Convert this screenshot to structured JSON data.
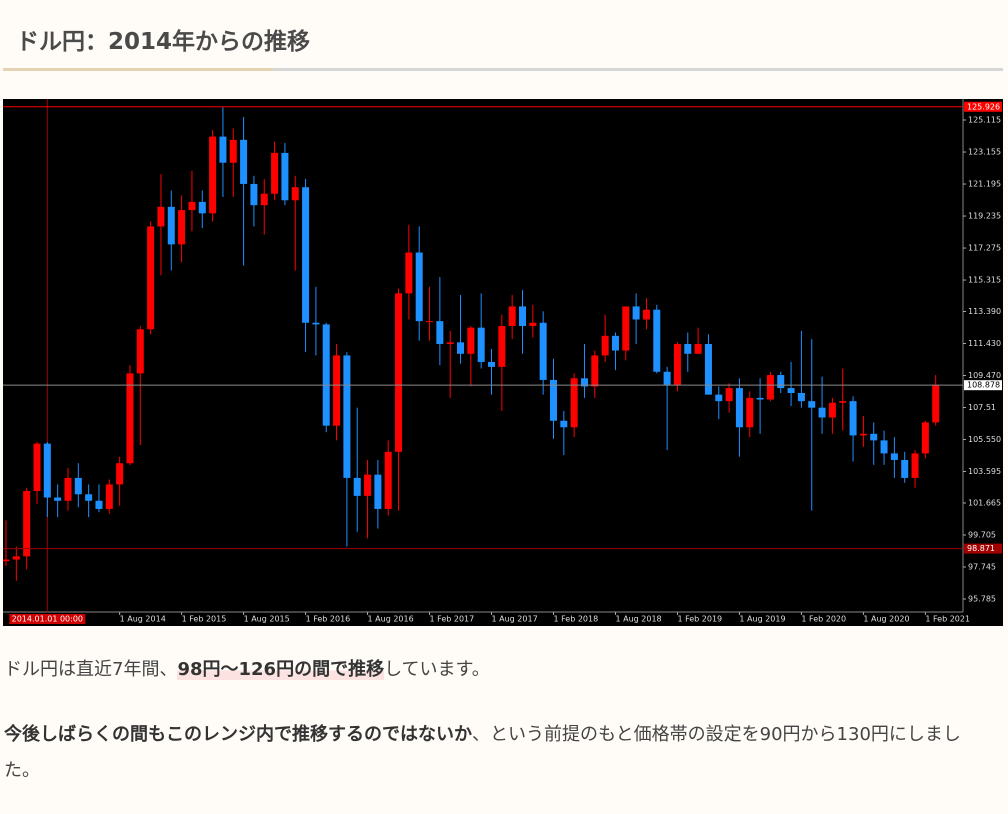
{
  "header": {
    "title": "ドル円：2014年からの推移"
  },
  "chart_data": {
    "type": "candlestick",
    "x": [
      "2013-09",
      "2013-10",
      "2013-11",
      "2013-12",
      "2014-01",
      "2014-02",
      "2014-03",
      "2014-04",
      "2014-05",
      "2014-06",
      "2014-07",
      "2014-08",
      "2014-09",
      "2014-10",
      "2014-11",
      "2014-12",
      "2015-01",
      "2015-02",
      "2015-03",
      "2015-04",
      "2015-05",
      "2015-06",
      "2015-07",
      "2015-08",
      "2015-09",
      "2015-10",
      "2015-11",
      "2015-12",
      "2016-01",
      "2016-02",
      "2016-03",
      "2016-04",
      "2016-05",
      "2016-06",
      "2016-07",
      "2016-08",
      "2016-09",
      "2016-10",
      "2016-11",
      "2016-12",
      "2017-01",
      "2017-02",
      "2017-03",
      "2017-04",
      "2017-05",
      "2017-06",
      "2017-07",
      "2017-08",
      "2017-09",
      "2017-10",
      "2017-11",
      "2017-12",
      "2018-01",
      "2018-02",
      "2018-03",
      "2018-04",
      "2018-05",
      "2018-06",
      "2018-07",
      "2018-08",
      "2018-09",
      "2018-10",
      "2018-11",
      "2018-12",
      "2019-01",
      "2019-02",
      "2019-03",
      "2019-04",
      "2019-05",
      "2019-06",
      "2019-07",
      "2019-08",
      "2019-09",
      "2019-10",
      "2019-11",
      "2019-12",
      "2020-01",
      "2020-02",
      "2020-03",
      "2020-04",
      "2020-05",
      "2020-06",
      "2020-07",
      "2020-08",
      "2020-09",
      "2020-10",
      "2020-11",
      "2020-12",
      "2021-01",
      "2021-02",
      "2021-03"
    ],
    "open": [
      98.1,
      98.2,
      98.4,
      102.4,
      105.3,
      102.0,
      101.8,
      103.2,
      102.2,
      101.8,
      101.3,
      102.8,
      104.1,
      109.6,
      112.3,
      118.6,
      119.8,
      117.5,
      119.6,
      120.1,
      119.4,
      124.1,
      122.5,
      123.9,
      121.2,
      119.9,
      120.6,
      123.1,
      120.2,
      121.0,
      112.7,
      112.6,
      106.4,
      110.7,
      103.2,
      102.1,
      103.4,
      101.3,
      104.8,
      114.5,
      117.0,
      112.8,
      112.8,
      111.4,
      111.5,
      110.8,
      112.4,
      110.3,
      110.0,
      112.5,
      113.7,
      112.5,
      112.7,
      109.2,
      106.7,
      106.3,
      109.3,
      108.8,
      110.7,
      111.9,
      111.0,
      113.7,
      112.9,
      113.5,
      109.7,
      108.9,
      111.4,
      110.8,
      111.4,
      108.3,
      107.9,
      108.7,
      106.3,
      108.1,
      108.0,
      109.5,
      108.7,
      108.4,
      107.9,
      107.5,
      106.9,
      107.8,
      107.9,
      105.8,
      105.9,
      105.5,
      104.7,
      104.3,
      103.2,
      104.7,
      106.6
    ],
    "high": [
      100.6,
      99.0,
      102.6,
      105.4,
      105.4,
      102.8,
      103.8,
      104.1,
      102.8,
      102.8,
      103.1,
      104.5,
      110.1,
      112.5,
      118.9,
      121.8,
      120.8,
      120.5,
      122.0,
      120.8,
      124.5,
      125.9,
      124.6,
      125.3,
      121.7,
      121.5,
      123.8,
      123.7,
      121.7,
      121.5,
      114.9,
      112.7,
      111.4,
      110.9,
      107.5,
      104.3,
      104.3,
      105.5,
      114.8,
      118.7,
      118.6,
      114.9,
      115.5,
      112.2,
      114.4,
      112.5,
      114.5,
      111.1,
      113.2,
      114.4,
      114.7,
      113.8,
      113.4,
      110.5,
      107.3,
      109.6,
      111.4,
      111.0,
      113.2,
      112.1,
      113.7,
      114.5,
      114.2,
      113.8,
      110.0,
      111.5,
      112.1,
      112.4,
      112.0,
      108.8,
      109.0,
      109.3,
      108.5,
      109.3,
      109.7,
      109.7,
      110.3,
      112.2,
      111.7,
      109.4,
      108.1,
      109.9,
      108.2,
      107.0,
      106.6,
      106.1,
      105.7,
      104.8,
      104.9,
      106.7,
      109.5
    ],
    "low": [
      97.8,
      96.9,
      97.6,
      101.6,
      100.8,
      100.8,
      101.2,
      101.4,
      100.8,
      101.1,
      101.0,
      101.5,
      104.0,
      105.2,
      112.0,
      115.6,
      115.9,
      116.4,
      118.3,
      118.5,
      118.9,
      120.4,
      120.4,
      116.2,
      118.6,
      118.1,
      120.2,
      119.9,
      115.9,
      110.9,
      110.7,
      106.0,
      105.5,
      99.0,
      99.9,
      99.5,
      100.1,
      100.9,
      101.2,
      112.9,
      111.6,
      111.6,
      110.1,
      108.1,
      110.2,
      108.8,
      109.9,
      108.3,
      107.3,
      111.7,
      110.8,
      111.8,
      108.3,
      105.6,
      104.6,
      105.7,
      108.1,
      108.1,
      110.3,
      109.8,
      110.4,
      111.4,
      112.3,
      109.6,
      104.9,
      108.5,
      109.7,
      110.8,
      108.3,
      106.8,
      107.2,
      104.5,
      105.7,
      105.9,
      107.9,
      108.4,
      107.6,
      107.5,
      101.2,
      105.9,
      105.9,
      106.1,
      104.2,
      105.1,
      104.0,
      104.0,
      103.2,
      102.9,
      102.6,
      104.4,
      106.4
    ],
    "close": [
      98.2,
      98.4,
      102.4,
      105.3,
      102.0,
      101.8,
      103.2,
      102.2,
      101.8,
      101.3,
      102.8,
      104.1,
      109.6,
      112.3,
      118.6,
      119.8,
      117.5,
      119.6,
      120.1,
      119.4,
      124.1,
      122.5,
      123.9,
      121.2,
      119.9,
      120.6,
      123.1,
      120.2,
      121.0,
      112.7,
      112.6,
      106.4,
      110.7,
      103.2,
      102.1,
      103.4,
      101.3,
      104.8,
      114.5,
      117.0,
      112.8,
      112.8,
      111.4,
      111.5,
      110.8,
      112.4,
      110.3,
      110.0,
      112.5,
      113.7,
      112.5,
      112.7,
      109.2,
      106.7,
      106.3,
      109.3,
      108.8,
      110.7,
      111.9,
      111.0,
      113.7,
      112.9,
      113.5,
      109.7,
      108.9,
      111.4,
      110.8,
      111.4,
      108.3,
      107.9,
      108.7,
      106.3,
      108.1,
      108.0,
      109.5,
      108.7,
      108.4,
      107.9,
      107.5,
      106.9,
      107.8,
      107.9,
      105.8,
      105.9,
      105.5,
      104.7,
      104.3,
      103.2,
      104.7,
      106.6,
      108.9
    ],
    "up_color": "#ff0000",
    "down_color": "#1e90ff",
    "ylim": [
      94.99,
      126.34
    ],
    "yticks": [
      95.785,
      97.745,
      99.705,
      101.665,
      103.595,
      {
        "value": 105.55,
        "label": "105.550"
      },
      107.51,
      {
        "value": 109.47,
        "label": "109.470"
      },
      {
        "value": 111.43,
        "label": "111.430"
      },
      {
        "value": 113.39,
        "label": "113.390"
      },
      115.315,
      117.275,
      119.235,
      121.195,
      123.155,
      125.115
    ],
    "xticks": [
      {
        "value": "2014-08",
        "label": "1 Aug 2014"
      },
      {
        "value": "2015-02",
        "label": "1 Feb 2015"
      },
      {
        "value": "2015-08",
        "label": "1 Aug 2015"
      },
      {
        "value": "2016-02",
        "label": "1 Feb 2016"
      },
      {
        "value": "2016-08",
        "label": "1 Aug 2016"
      },
      {
        "value": "2017-02",
        "label": "1 Feb 2017"
      },
      {
        "value": "2017-08",
        "label": "1 Aug 2017"
      },
      {
        "value": "2018-02",
        "label": "1 Feb 2018"
      },
      {
        "value": "2018-08",
        "label": "1 Aug 2018"
      },
      {
        "value": "2019-02",
        "label": "1 Feb 2019"
      },
      {
        "value": "2019-08",
        "label": "1 Aug 2019"
      },
      {
        "value": "2020-02",
        "label": "1 Feb 2020"
      },
      {
        "value": "2020-08",
        "label": "1 Aug 2020"
      },
      {
        "value": "2021-02",
        "label": "1 Feb 2021"
      }
    ],
    "levels": [
      {
        "value": 125.926,
        "color": "#ff0000"
      },
      {
        "value": 108.878,
        "color": "#8a8a8a"
      },
      {
        "value": 98.871,
        "color": "#a00000"
      }
    ],
    "cursor": {
      "x": "2014-01",
      "label": "2014.01.01 00:00"
    }
  },
  "paragraphs": [
    [
      {
        "text": "ドル円は直近7年間、"
      },
      {
        "text": "98円～126円の間で推移",
        "bold": true,
        "highlight": true
      },
      {
        "text": "しています。"
      }
    ],
    [
      {
        "text": "今後しばらくの間もこのレンジ内で推移するのではないか",
        "bold": true
      },
      {
        "text": "、という前提のもと価格帯の設定を90円から130円にしました。"
      }
    ]
  ]
}
